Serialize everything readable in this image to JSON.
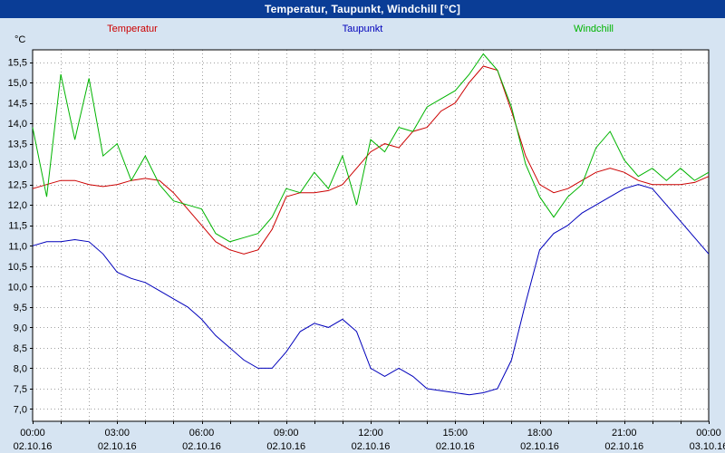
{
  "window": {
    "title": "Temperatur, Taupunkt, Windchill [°C]"
  },
  "chart_data": {
    "type": "line",
    "title": "Temperatur, Taupunkt, Windchill [°C]",
    "xlabel": "",
    "ylabel": "°C",
    "xlim": [
      0,
      24
    ],
    "ylim": [
      6.7,
      15.8
    ],
    "grid": "dotted",
    "x_grid_step_hours": 1,
    "y_grid_step": 0.5,
    "x_hours": [
      0,
      0.5,
      1,
      1.5,
      2,
      2.5,
      3,
      3.5,
      4,
      4.5,
      5,
      5.5,
      6,
      6.5,
      7,
      7.5,
      8,
      8.5,
      9,
      9.5,
      10,
      10.5,
      11,
      11.5,
      12,
      12.5,
      13,
      13.5,
      14,
      14.5,
      15,
      15.5,
      16,
      16.5,
      17,
      17.5,
      18,
      18.5,
      19,
      19.5,
      20,
      20.5,
      21,
      21.5,
      22,
      22.5,
      23,
      23.5,
      24
    ],
    "series": [
      {
        "name": "Temperatur",
        "color": "#cc0000",
        "values": [
          12.4,
          12.5,
          12.6,
          12.6,
          12.5,
          12.45,
          12.5,
          12.6,
          12.65,
          12.6,
          12.3,
          11.9,
          11.5,
          11.1,
          10.9,
          10.8,
          10.9,
          11.4,
          12.2,
          12.3,
          12.3,
          12.35,
          12.5,
          12.9,
          13.3,
          13.5,
          13.4,
          13.8,
          13.9,
          14.3,
          14.5,
          15.0,
          15.4,
          15.3,
          14.3,
          13.2,
          12.5,
          12.3,
          12.4,
          12.6,
          12.8,
          12.9,
          12.8,
          12.6,
          12.5,
          12.5,
          12.5,
          12.55,
          12.7
        ]
      },
      {
        "name": "Taupunkt",
        "color": "#0000bb",
        "values": [
          11.0,
          11.1,
          11.1,
          11.15,
          11.1,
          10.8,
          10.35,
          10.2,
          10.1,
          9.9,
          9.7,
          9.5,
          9.2,
          8.8,
          8.5,
          8.2,
          8.0,
          8.0,
          8.4,
          8.9,
          9.1,
          9.0,
          9.2,
          8.9,
          8.0,
          7.8,
          8.0,
          7.8,
          7.5,
          7.45,
          7.4,
          7.35,
          7.4,
          7.5,
          8.2,
          9.6,
          10.9,
          11.3,
          11.5,
          11.8,
          12.0,
          12.2,
          12.4,
          12.5,
          12.4,
          12.0,
          11.6,
          11.2,
          10.8
        ]
      },
      {
        "name": "Windchill",
        "color": "#00b400",
        "values": [
          13.9,
          12.2,
          15.2,
          13.6,
          15.1,
          13.2,
          13.5,
          12.6,
          13.2,
          12.5,
          12.1,
          12.0,
          11.9,
          11.3,
          11.1,
          11.2,
          11.3,
          11.7,
          12.4,
          12.3,
          12.8,
          12.4,
          13.2,
          12.0,
          13.6,
          13.3,
          13.9,
          13.8,
          14.4,
          14.6,
          14.8,
          15.2,
          15.7,
          15.3,
          14.4,
          13.0,
          12.2,
          11.7,
          12.2,
          12.5,
          13.4,
          13.8,
          13.1,
          12.7,
          12.9,
          12.6,
          12.9,
          12.6,
          12.8
        ]
      }
    ],
    "y_ticks": [
      {
        "value": 15.5,
        "label": "15,5"
      },
      {
        "value": 15.0,
        "label": "15,0"
      },
      {
        "value": 14.5,
        "label": "14,5"
      },
      {
        "value": 14.0,
        "label": "14,0"
      },
      {
        "value": 13.5,
        "label": "13,5"
      },
      {
        "value": 13.0,
        "label": "13,0"
      },
      {
        "value": 12.5,
        "label": "12,5"
      },
      {
        "value": 12.0,
        "label": "12,0"
      },
      {
        "value": 11.5,
        "label": "11,5"
      },
      {
        "value": 11.0,
        "label": "11,0"
      },
      {
        "value": 10.5,
        "label": "10,5"
      },
      {
        "value": 10.0,
        "label": "10,0"
      },
      {
        "value": 9.5,
        "label": "9,5"
      },
      {
        "value": 9.0,
        "label": "9,0"
      },
      {
        "value": 8.5,
        "label": "8,5"
      },
      {
        "value": 8.0,
        "label": "8,0"
      },
      {
        "value": 7.5,
        "label": "7,5"
      },
      {
        "value": 7.0,
        "label": "7,0"
      }
    ],
    "x_ticks": [
      {
        "hour": 0,
        "time": "00:00",
        "date": "02.10.16"
      },
      {
        "hour": 3,
        "time": "03:00",
        "date": "02.10.16"
      },
      {
        "hour": 6,
        "time": "06:00",
        "date": "02.10.16"
      },
      {
        "hour": 9,
        "time": "09:00",
        "date": "02.10.16"
      },
      {
        "hour": 12,
        "time": "12:00",
        "date": "02.10.16"
      },
      {
        "hour": 15,
        "time": "15:00",
        "date": "02.10.16"
      },
      {
        "hour": 18,
        "time": "18:00",
        "date": "02.10.16"
      },
      {
        "hour": 21,
        "time": "21:00",
        "date": "02.10.16"
      },
      {
        "hour": 24,
        "time": "00:00",
        "date": "03.10.16"
      }
    ]
  }
}
